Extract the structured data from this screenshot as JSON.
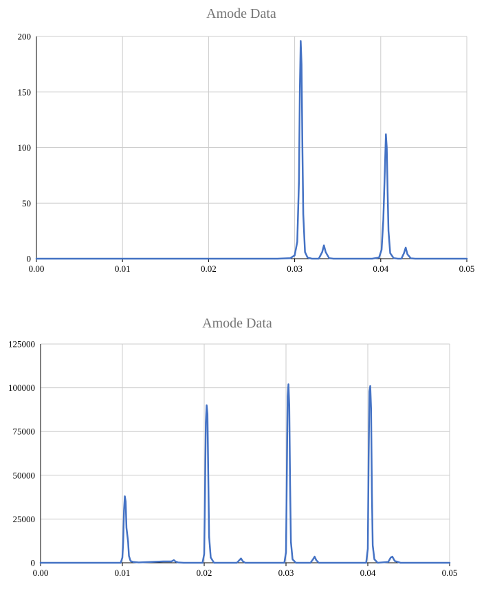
{
  "chart_data": [
    {
      "type": "line",
      "title": "Amode Data",
      "xlabel": "",
      "ylabel": "",
      "xlim": [
        0,
        0.05
      ],
      "ylim": [
        0,
        200
      ],
      "xticks": [
        "0.00",
        "0.01",
        "0.02",
        "0.03",
        "0.04",
        "0.05"
      ],
      "yticks": [
        "0",
        "50",
        "100",
        "150",
        "200"
      ],
      "grid": true,
      "legend": "none",
      "color": "#4472c4",
      "series": [
        {
          "x": [
            0,
            0.028,
            0.0295,
            0.03,
            0.0303,
            0.0305,
            0.0306,
            0.0307,
            0.0308,
            0.0309,
            0.031,
            0.0312,
            0.0315,
            0.032,
            0.0328,
            0.0332,
            0.0334,
            0.0336,
            0.034,
            0.0345,
            0.039,
            0.0398,
            0.0401,
            0.0403,
            0.0405,
            0.0406,
            0.0407,
            0.0408,
            0.0409,
            0.0411,
            0.0415,
            0.042,
            0.0424,
            0.0427,
            0.0429,
            0.0431,
            0.0435,
            0.044,
            0.05
          ],
          "y": [
            0,
            0,
            0.5,
            3,
            15,
            70,
            150,
            196,
            175,
            100,
            40,
            6,
            1,
            0,
            0,
            6,
            12,
            6,
            0.5,
            0,
            0,
            1,
            8,
            35,
            85,
            112,
            100,
            60,
            25,
            5,
            0.5,
            0,
            0,
            5,
            10,
            4,
            0.3,
            0,
            0
          ]
        }
      ]
    },
    {
      "type": "line",
      "title": "Amode Data",
      "xlabel": "",
      "ylabel": "",
      "xlim": [
        0,
        0.05
      ],
      "ylim": [
        0,
        125000
      ],
      "xticks": [
        "0.00",
        "0.01",
        "0.02",
        "0.03",
        "0.04",
        "0.05"
      ],
      "yticks": [
        "0",
        "25000",
        "50000",
        "75000",
        "100000",
        "125000"
      ],
      "grid": true,
      "legend": "none",
      "color": "#4472c4",
      "series": [
        {
          "x": [
            0,
            0.0098,
            0.01,
            0.0101,
            0.0102,
            0.0103,
            0.0104,
            0.0105,
            0.0106,
            0.0107,
            0.0108,
            0.011,
            0.0113,
            0.012,
            0.0135,
            0.015,
            0.016,
            0.0163,
            0.0165,
            0.0168,
            0.0175,
            0.0198,
            0.02,
            0.0201,
            0.0202,
            0.0203,
            0.0204,
            0.0205,
            0.0206,
            0.0208,
            0.0212,
            0.024,
            0.0243,
            0.0245,
            0.0247,
            0.025,
            0.0298,
            0.03,
            0.0301,
            0.0302,
            0.0303,
            0.0304,
            0.0305,
            0.0306,
            0.0308,
            0.0312,
            0.033,
            0.0333,
            0.0335,
            0.0337,
            0.034,
            0.0398,
            0.04,
            0.0401,
            0.0402,
            0.0403,
            0.0404,
            0.0405,
            0.0406,
            0.0408,
            0.0412,
            0.042,
            0.0425,
            0.0428,
            0.043,
            0.0433,
            0.044,
            0.05
          ],
          "y": [
            0,
            0,
            3000,
            12000,
            30000,
            38000,
            35000,
            20000,
            16000,
            12000,
            4000,
            1000,
            500,
            200,
            500,
            800,
            800,
            1500,
            700,
            200,
            0,
            0,
            5000,
            40000,
            80000,
            90000,
            85000,
            50000,
            15000,
            3000,
            0,
            0,
            1500,
            2500,
            1000,
            0,
            0,
            6000,
            50000,
            95000,
            102000,
            90000,
            45000,
            12000,
            2000,
            0,
            0,
            2000,
            3500,
            1500,
            0,
            0,
            8000,
            60000,
            98000,
            101000,
            88000,
            40000,
            10000,
            2000,
            0,
            300,
            500,
            3000,
            3500,
            1000,
            0,
            0
          ]
        }
      ]
    }
  ]
}
